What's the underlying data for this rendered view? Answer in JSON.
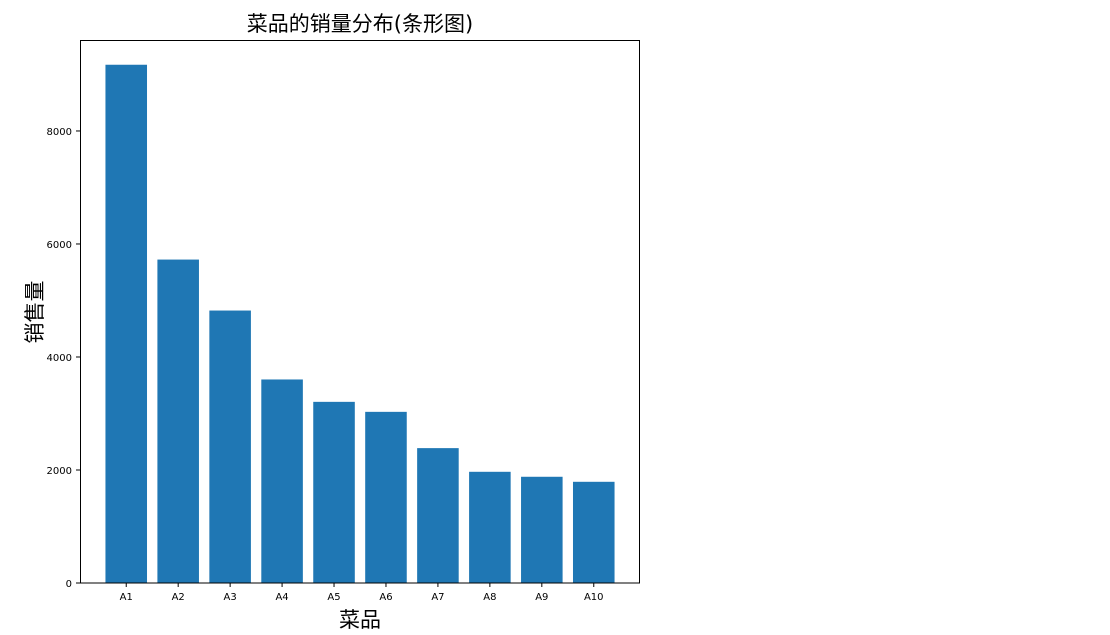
{
  "chart_data": {
    "type": "bar",
    "title": "菜品的销量分布(条形图)",
    "xlabel": "菜品",
    "ylabel": "销售量",
    "categories": [
      "A1",
      "A2",
      "A3",
      "A4",
      "A5",
      "A6",
      "A7",
      "A8",
      "A9",
      "A10"
    ],
    "values": [
      9172,
      5724,
      4822,
      3602,
      3206,
      3029,
      2387,
      1968,
      1880,
      1791
    ],
    "ylim": [
      0,
      9610
    ],
    "yticks": [
      0,
      2000,
      4000,
      6000,
      8000
    ],
    "grid": false,
    "bar_color": "#1f77b4"
  }
}
